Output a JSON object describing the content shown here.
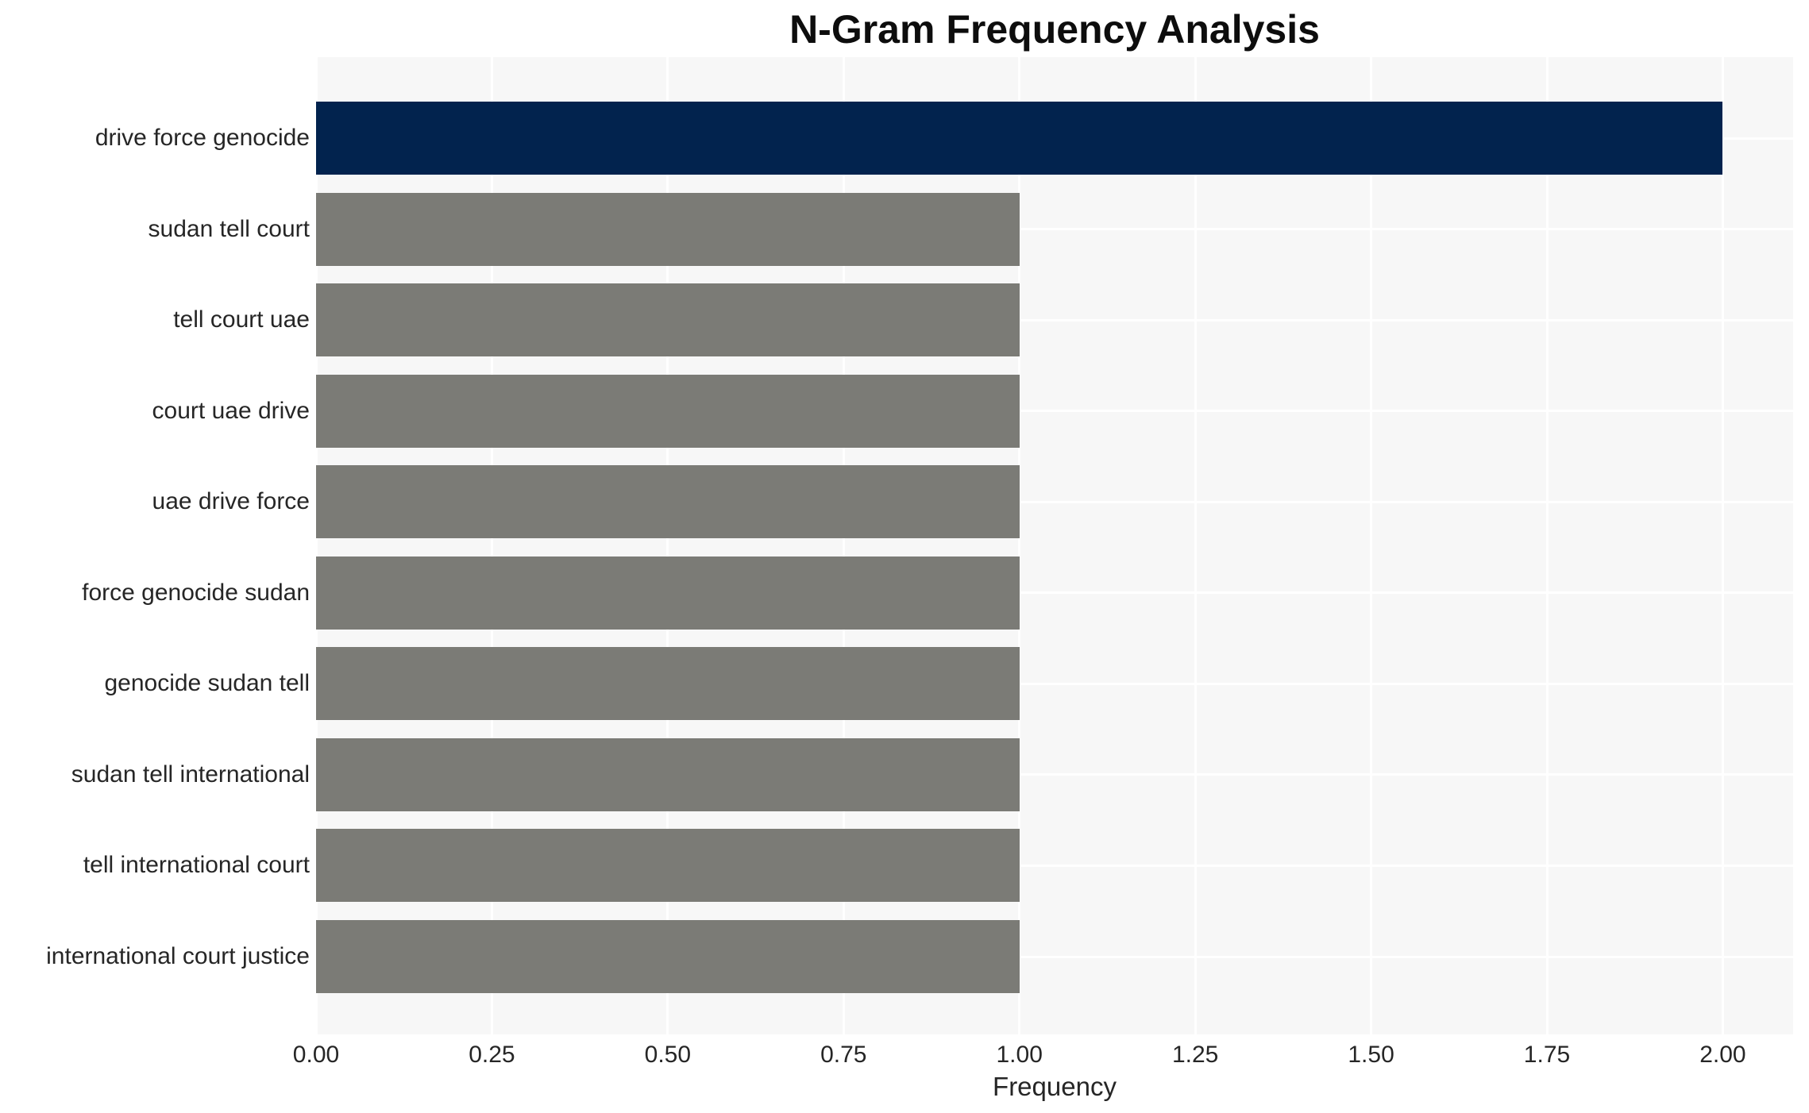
{
  "title": "N-Gram Frequency Analysis",
  "chart_data": {
    "type": "bar",
    "orientation": "horizontal",
    "title": "N-Gram Frequency Analysis",
    "xlabel": "Frequency",
    "ylabel": "",
    "categories": [
      "drive force genocide",
      "sudan tell court",
      "tell court uae",
      "court uae drive",
      "uae drive force",
      "force genocide sudan",
      "genocide sudan tell",
      "sudan tell international",
      "tell international court",
      "international court justice"
    ],
    "values": [
      2,
      1,
      1,
      1,
      1,
      1,
      1,
      1,
      1,
      1
    ],
    "bar_colors": [
      "#02234e",
      "#7b7b76",
      "#7b7b76",
      "#7b7b76",
      "#7b7b76",
      "#7b7b76",
      "#7b7b76",
      "#7b7b76",
      "#7b7b76",
      "#7b7b76"
    ],
    "xlim": [
      0,
      2.1
    ],
    "xticks": [
      0,
      0.25,
      0.5,
      0.75,
      1.0,
      1.25,
      1.5,
      1.75,
      2.0
    ],
    "xtick_labels": [
      "0.00",
      "0.25",
      "0.50",
      "0.75",
      "1.00",
      "1.25",
      "1.50",
      "1.75",
      "2.00"
    ],
    "grid": true,
    "legend": null,
    "colors": {
      "highlight": "#02234e",
      "default": "#7b7b76",
      "panel_background": "#f7f7f7",
      "figure_background": "#ffffff",
      "gridline": "#ffffff",
      "text": "#262626"
    }
  }
}
